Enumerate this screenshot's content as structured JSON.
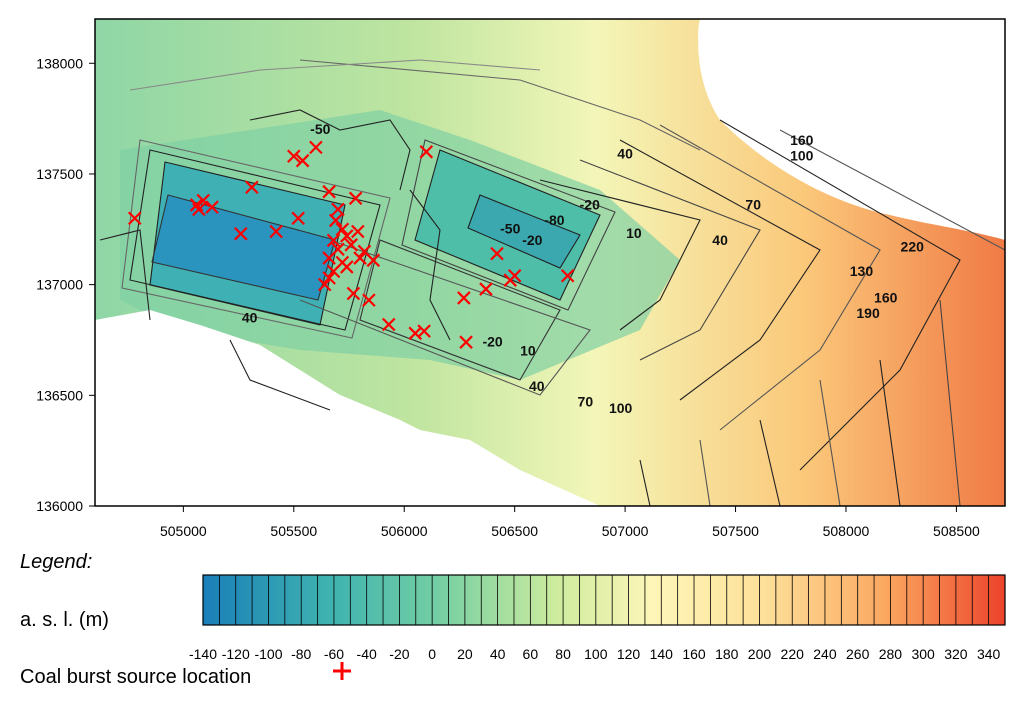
{
  "map": {
    "x_axis": {
      "range": [
        504600,
        508720
      ],
      "ticks": [
        505000,
        505500,
        506000,
        506500,
        507000,
        507500,
        508000,
        508500
      ],
      "tick_labels": [
        "505000",
        "505500",
        "506000",
        "506500",
        "507000",
        "507500",
        "508000",
        "508500"
      ]
    },
    "y_axis": {
      "range": [
        136000,
        138200
      ],
      "ticks": [
        136000,
        136500,
        137000,
        137500,
        138000
      ],
      "tick_labels": [
        "136000",
        "136500",
        "137000",
        "137500",
        "138000"
      ]
    },
    "contour_labels": [
      {
        "text": "-50",
        "x": 505620,
        "y": 137680
      },
      {
        "text": "160",
        "x": 507800,
        "y": 137630
      },
      {
        "text": "100",
        "x": 507800,
        "y": 137560
      },
      {
        "text": "40",
        "x": 507000,
        "y": 137570
      },
      {
        "text": "-80",
        "x": 506680,
        "y": 137270
      },
      {
        "text": "-20",
        "x": 506840,
        "y": 137340
      },
      {
        "text": "-50",
        "x": 506480,
        "y": 137230
      },
      {
        "text": "-20",
        "x": 506580,
        "y": 137180
      },
      {
        "text": "10",
        "x": 507040,
        "y": 137210
      },
      {
        "text": "70",
        "x": 507580,
        "y": 137340
      },
      {
        "text": "40",
        "x": 507430,
        "y": 137180
      },
      {
        "text": "220",
        "x": 508300,
        "y": 137150
      },
      {
        "text": "130",
        "x": 508070,
        "y": 137040
      },
      {
        "text": "160",
        "x": 508180,
        "y": 136920
      },
      {
        "text": "190",
        "x": 508100,
        "y": 136850
      },
      {
        "text": "40",
        "x": 505300,
        "y": 136830
      },
      {
        "text": "-20",
        "x": 506400,
        "y": 136720
      },
      {
        "text": "10",
        "x": 506560,
        "y": 136680
      },
      {
        "text": "40",
        "x": 506600,
        "y": 136520
      },
      {
        "text": "70",
        "x": 506820,
        "y": 136450
      },
      {
        "text": "100",
        "x": 506980,
        "y": 136420
      }
    ],
    "source_locations": [
      [
        504780,
        137300
      ],
      [
        505060,
        137360
      ],
      [
        505090,
        137380
      ],
      [
        505130,
        137350
      ],
      [
        505070,
        137340
      ],
      [
        505260,
        137230
      ],
      [
        505310,
        137440
      ],
      [
        505420,
        137240
      ],
      [
        505500,
        137580
      ],
      [
        505540,
        137560
      ],
      [
        505600,
        137620
      ],
      [
        505520,
        137300
      ],
      [
        505660,
        137420
      ],
      [
        505700,
        137340
      ],
      [
        505690,
        137290
      ],
      [
        505720,
        137250
      ],
      [
        505680,
        137200
      ],
      [
        505740,
        137220
      ],
      [
        505760,
        137180
      ],
      [
        505700,
        137160
      ],
      [
        505660,
        137120
      ],
      [
        505720,
        137100
      ],
      [
        505680,
        137060
      ],
      [
        505660,
        137030
      ],
      [
        505640,
        137000
      ],
      [
        505780,
        137390
      ],
      [
        505790,
        137240
      ],
      [
        505820,
        137150
      ],
      [
        505800,
        137120
      ],
      [
        505740,
        137080
      ],
      [
        505770,
        136960
      ],
      [
        505840,
        136930
      ],
      [
        505930,
        136820
      ],
      [
        506050,
        136780
      ],
      [
        506090,
        136790
      ],
      [
        506100,
        137600
      ],
      [
        506270,
        136940
      ],
      [
        506280,
        136740
      ],
      [
        506370,
        136980
      ],
      [
        506420,
        137140
      ],
      [
        506480,
        137020
      ],
      [
        506500,
        137040
      ],
      [
        506740,
        137040
      ],
      [
        505860,
        137110
      ]
    ]
  },
  "legend": {
    "title": "Legend:",
    "asl_label": "a. s. l. (m)",
    "scale_min": -140,
    "scale_max": 350,
    "scale_labels": [
      "-140",
      "-120",
      "-100",
      "-80",
      "-60",
      "-40",
      "-20",
      "0",
      "20",
      "40",
      "60",
      "80",
      "100",
      "120",
      "140",
      "160",
      "180",
      "200",
      "220",
      "240",
      "260",
      "280",
      "300",
      "320",
      "340"
    ],
    "source_label": "Coal burst source location",
    "colors": {
      "low": "#1a7fb8",
      "mid_low": "#5fc7a8",
      "mid": "#d8ee9c",
      "mid_high": "#fdf4b8",
      "high_mid": "#fbb464",
      "high": "#e8422a",
      "source_marker": "#ff0000"
    }
  }
}
